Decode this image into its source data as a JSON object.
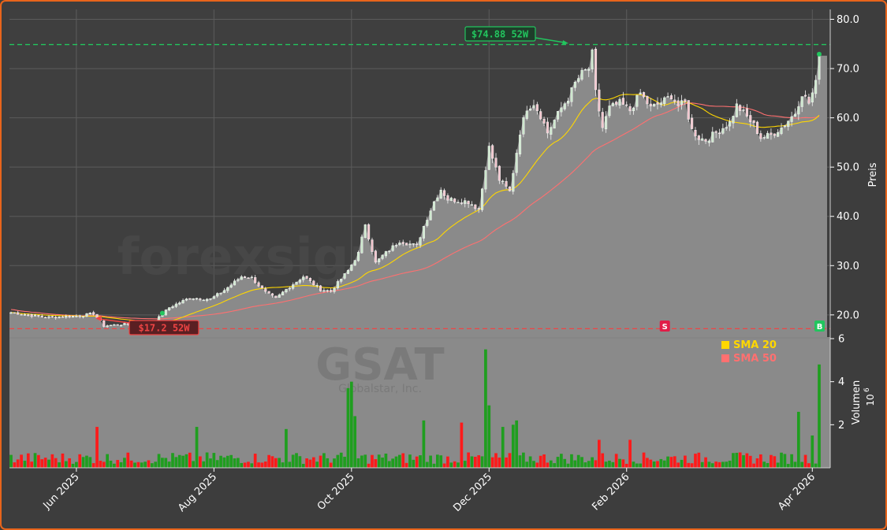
{
  "chart_data": {
    "type": "candlestick",
    "ticker": "GSAT",
    "company": "Globalstar, Inc.",
    "watermark": "forexsignale.trade",
    "x_tick_labels": [
      "Jun 2025",
      "Aug 2025",
      "Oct 2025",
      "Dec 2025",
      "Feb 2026",
      "Apr 2026"
    ],
    "price_axis": {
      "label": "Preis",
      "range": [
        15.5,
        82
      ],
      "ticks": [
        "20.0",
        "30.0",
        "40.0",
        "50.0",
        "60.0",
        "70.0",
        "80.0"
      ],
      "tick_values": [
        20,
        30,
        40,
        50,
        60,
        70,
        80
      ]
    },
    "volume_axis": {
      "label": "Volumen",
      "exponent": "10",
      "exponent_power": "6",
      "range": [
        0,
        6
      ],
      "ticks": [
        "2",
        "4",
        "6"
      ],
      "tick_values": [
        2,
        4,
        6
      ]
    },
    "high_52w": {
      "label": "$74.88 52W",
      "value": 74.88
    },
    "low_52w": {
      "label": "$17.2  52W",
      "value": 17.2
    },
    "last_price": 72.6,
    "legend": [
      {
        "name": "SMA 20",
        "color": "#ffd700"
      },
      {
        "name": "SMA 50",
        "color": "#ff7070"
      }
    ],
    "signals": [
      {
        "type": "B",
        "index": 44
      },
      {
        "type": "S",
        "index": 190
      },
      {
        "type": "B",
        "index": 235
      }
    ],
    "price_keypoints": [
      [
        0,
        20.5
      ],
      [
        10,
        19.5
      ],
      [
        20,
        19.8
      ],
      [
        24,
        20.3
      ],
      [
        27,
        17.8
      ],
      [
        35,
        18.2
      ],
      [
        42,
        18.8
      ],
      [
        46,
        21.5
      ],
      [
        52,
        23.5
      ],
      [
        58,
        23.2
      ],
      [
        62,
        25.0
      ],
      [
        67,
        27.8
      ],
      [
        70,
        27.5
      ],
      [
        74,
        24.5
      ],
      [
        77,
        23.3
      ],
      [
        80,
        25.2
      ],
      [
        85,
        27.8
      ],
      [
        90,
        25.2
      ],
      [
        93,
        24.8
      ],
      [
        98,
        29.0
      ],
      [
        101,
        32.5
      ],
      [
        103,
        38.5
      ],
      [
        106,
        30.5
      ],
      [
        108,
        32.0
      ],
      [
        113,
        35.0
      ],
      [
        118,
        34.0
      ],
      [
        120,
        38.0
      ],
      [
        123,
        43.0
      ],
      [
        125,
        45.5
      ],
      [
        127,
        43.5
      ],
      [
        133,
        43.0
      ],
      [
        136,
        41.5
      ],
      [
        139,
        54.0
      ],
      [
        142,
        47.5
      ],
      [
        145,
        45.0
      ],
      [
        148,
        57.0
      ],
      [
        150,
        62.0
      ],
      [
        152,
        63.0
      ],
      [
        154,
        60.5
      ],
      [
        156,
        57.0
      ],
      [
        160,
        62.0
      ],
      [
        162,
        64.0
      ],
      [
        164,
        67.0
      ],
      [
        166,
        69.0
      ],
      [
        168,
        70.0
      ],
      [
        169,
        73.0
      ],
      [
        170,
        65.0
      ],
      [
        172,
        58.0
      ],
      [
        174,
        62.0
      ],
      [
        177,
        63.0
      ],
      [
        180,
        61.5
      ],
      [
        183,
        65.0
      ],
      [
        186,
        62.0
      ],
      [
        190,
        63.5
      ],
      [
        192,
        64.5
      ],
      [
        194,
        62.5
      ],
      [
        196,
        63.0
      ],
      [
        198,
        57.5
      ],
      [
        200,
        56.0
      ],
      [
        202,
        55.5
      ],
      [
        205,
        57.0
      ],
      [
        209,
        59.0
      ],
      [
        211,
        62.5
      ],
      [
        213,
        61.0
      ],
      [
        216,
        58.5
      ],
      [
        218,
        56.0
      ],
      [
        221,
        56.5
      ],
      [
        224,
        58.0
      ],
      [
        228,
        61.0
      ],
      [
        230,
        65.0
      ],
      [
        232,
        63.0
      ],
      [
        234,
        67.0
      ],
      [
        235,
        72.6
      ]
    ],
    "volume_spikes": [
      [
        25,
        1.9
      ],
      [
        54,
        1.9
      ],
      [
        80,
        1.8
      ],
      [
        98,
        3.7
      ],
      [
        99,
        4.0
      ],
      [
        100,
        2.4
      ],
      [
        120,
        2.2
      ],
      [
        131,
        2.1
      ],
      [
        138,
        5.5
      ],
      [
        139,
        2.9
      ],
      [
        143,
        1.9
      ],
      [
        146,
        2.0
      ],
      [
        147,
        2.2
      ],
      [
        171,
        1.3
      ],
      [
        180,
        1.3
      ],
      [
        229,
        2.6
      ],
      [
        233,
        1.5
      ],
      [
        235,
        4.8
      ]
    ],
    "volume_base": 0.45,
    "bar_count": 236
  }
}
